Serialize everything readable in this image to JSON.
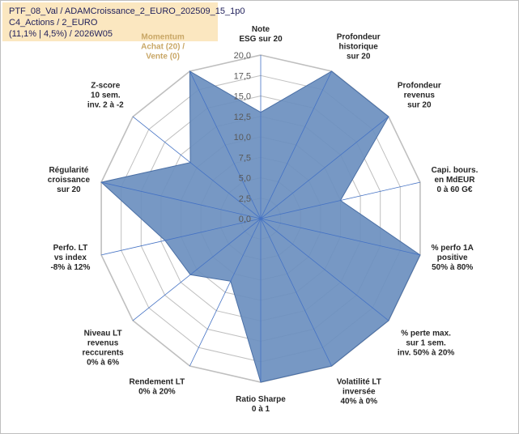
{
  "info": {
    "line1": "PTF_08_Val / ADAMCroissance_2_EURO_202509_15_1p0",
    "line2": "C4_Actions / 2_EURO",
    "line3": "(11,1% | 4,5%) / 2026W05"
  },
  "chart_data": {
    "type": "radar",
    "title": "",
    "rlim": [
      0,
      20
    ],
    "ticks": [
      "0,0",
      "2,5",
      "5,0",
      "7,5",
      "10,0",
      "12,5",
      "15,0",
      "17,5",
      "20,0"
    ],
    "grid": true,
    "legend": "none",
    "categories": [
      {
        "lines": [
          "Note",
          "ESG sur 20"
        ],
        "highlight": false
      },
      {
        "lines": [
          "Profondeur",
          "historique",
          "sur 20"
        ],
        "highlight": false
      },
      {
        "lines": [
          "Profondeur",
          "revenus",
          "sur 20"
        ],
        "highlight": false
      },
      {
        "lines": [
          "Capi. bours.",
          "en MdEUR",
          "0 à 60 G€"
        ],
        "highlight": false
      },
      {
        "lines": [
          "% perfo 1A",
          "positive",
          "50% à 80%"
        ],
        "highlight": false
      },
      {
        "lines": [
          "% perte max.",
          "sur 1 sem.",
          "inv. 50% à 20%"
        ],
        "highlight": false
      },
      {
        "lines": [
          "Volatilité LT",
          "inversée",
          "40% à 0%"
        ],
        "highlight": false
      },
      {
        "lines": [
          "Ratio Sharpe",
          "0 à 1"
        ],
        "highlight": false
      },
      {
        "lines": [
          "Rendement LT",
          "0% à 20%"
        ],
        "highlight": false
      },
      {
        "lines": [
          "Niveau LT",
          "revenus",
          "reccurents",
          "0% à 6%"
        ],
        "highlight": false
      },
      {
        "lines": [
          "Perfo. LT",
          "vs index",
          "-8% à 12%"
        ],
        "highlight": false
      },
      {
        "lines": [
          "Régularité",
          "croissance",
          "sur 20"
        ],
        "highlight": false
      },
      {
        "lines": [
          "Z-score",
          "10 sem.",
          "inv. 2 à -2"
        ],
        "highlight": false
      },
      {
        "lines": [
          "Momentum",
          "Achat (20) /",
          "Vente (0)"
        ],
        "highlight": true
      }
    ],
    "series": [
      {
        "values": [
          13.0,
          20.0,
          20.0,
          10.0,
          20.0,
          20.0,
          20.0,
          20.0,
          8.5,
          11.0,
          12.0,
          20.0,
          11.0,
          20.0
        ]
      }
    ],
    "colors": {
      "fill": "#6b8fbf",
      "stroke": "#4a6fa5",
      "grid": "#bfbfbf",
      "axis": "#4472c4"
    }
  }
}
